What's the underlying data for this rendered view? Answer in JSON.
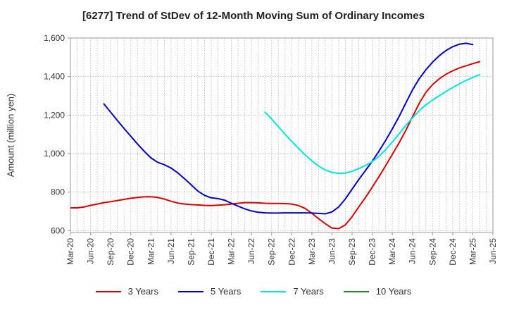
{
  "chart_data": {
    "type": "line",
    "title": "[6277]  Trend of StDev of 12-Month Moving Sum of Ordinary Incomes",
    "ylabel": "Amount (million yen)",
    "xlabel": "",
    "ylim": [
      590,
      1600
    ],
    "yticks": [
      600,
      800,
      1000,
      1200,
      1400,
      1600
    ],
    "ytick_labels": [
      "600",
      "800",
      "1,000",
      "1,200",
      "1,400",
      "1,600"
    ],
    "x_range": [
      "2020-03",
      "2025-06"
    ],
    "xtick_labels": [
      "Mar-20",
      "Jun-20",
      "Sep-20",
      "Dec-20",
      "Mar-21",
      "Jun-21",
      "Sep-21",
      "Dec-21",
      "Mar-22",
      "Jun-22",
      "Sep-22",
      "Dec-22",
      "Mar-23",
      "Jun-23",
      "Sep-23",
      "Dec-23",
      "Mar-24",
      "Jun-24",
      "Sep-24",
      "Dec-24",
      "Mar-25",
      "Jun-25"
    ],
    "grid": true,
    "legend_position": "bottom",
    "series": [
      {
        "name": "3 Years",
        "color": "#dd0000",
        "points": [
          [
            "2020-03",
            718
          ],
          [
            "2020-04",
            718
          ],
          [
            "2020-05",
            722
          ],
          [
            "2020-06",
            731
          ],
          [
            "2020-07",
            738
          ],
          [
            "2020-08",
            745
          ],
          [
            "2020-09",
            750
          ],
          [
            "2020-10",
            756
          ],
          [
            "2020-11",
            762
          ],
          [
            "2020-12",
            768
          ],
          [
            "2021-01",
            772
          ],
          [
            "2021-02",
            775
          ],
          [
            "2021-03",
            776
          ],
          [
            "2021-04",
            772
          ],
          [
            "2021-05",
            764
          ],
          [
            "2021-06",
            752
          ],
          [
            "2021-07",
            743
          ],
          [
            "2021-08",
            738
          ],
          [
            "2021-09",
            735
          ],
          [
            "2021-10",
            733
          ],
          [
            "2021-11",
            731
          ],
          [
            "2021-12",
            730
          ],
          [
            "2022-01",
            732
          ],
          [
            "2022-02",
            734
          ],
          [
            "2022-03",
            738
          ],
          [
            "2022-04",
            742
          ],
          [
            "2022-05",
            745
          ],
          [
            "2022-06",
            745
          ],
          [
            "2022-07",
            744
          ],
          [
            "2022-08",
            742
          ],
          [
            "2022-09",
            741
          ],
          [
            "2022-10",
            741
          ],
          [
            "2022-11",
            740
          ],
          [
            "2022-12",
            738
          ],
          [
            "2023-01",
            730
          ],
          [
            "2023-02",
            715
          ],
          [
            "2023-03",
            690
          ],
          [
            "2023-04",
            662
          ],
          [
            "2023-05",
            636
          ],
          [
            "2023-06",
            613
          ],
          [
            "2023-07",
            610
          ],
          [
            "2023-08",
            630
          ],
          [
            "2023-09",
            672
          ],
          [
            "2023-10",
            723
          ],
          [
            "2023-11",
            772
          ],
          [
            "2023-12",
            825
          ],
          [
            "2024-01",
            880
          ],
          [
            "2024-02",
            936
          ],
          [
            "2024-03",
            995
          ],
          [
            "2024-04",
            1055
          ],
          [
            "2024-05",
            1120
          ],
          [
            "2024-06",
            1190
          ],
          [
            "2024-07",
            1260
          ],
          [
            "2024-08",
            1318
          ],
          [
            "2024-09",
            1358
          ],
          [
            "2024-10",
            1388
          ],
          [
            "2024-11",
            1412
          ],
          [
            "2024-12",
            1430
          ],
          [
            "2025-01",
            1445
          ],
          [
            "2025-02",
            1456
          ],
          [
            "2025-03",
            1467
          ],
          [
            "2025-04",
            1477
          ]
        ]
      },
      {
        "name": "5 Years",
        "color": "#0000cc",
        "points": [
          [
            "2020-08",
            1258
          ],
          [
            "2020-09",
            1215
          ],
          [
            "2020-10",
            1172
          ],
          [
            "2020-11",
            1130
          ],
          [
            "2020-12",
            1090
          ],
          [
            "2021-01",
            1050
          ],
          [
            "2021-02",
            1012
          ],
          [
            "2021-03",
            978
          ],
          [
            "2021-04",
            955
          ],
          [
            "2021-05",
            942
          ],
          [
            "2021-06",
            925
          ],
          [
            "2021-07",
            900
          ],
          [
            "2021-08",
            870
          ],
          [
            "2021-09",
            838
          ],
          [
            "2021-10",
            805
          ],
          [
            "2021-11",
            783
          ],
          [
            "2021-12",
            770
          ],
          [
            "2022-01",
            766
          ],
          [
            "2022-02",
            758
          ],
          [
            "2022-03",
            742
          ],
          [
            "2022-04",
            727
          ],
          [
            "2022-05",
            713
          ],
          [
            "2022-06",
            702
          ],
          [
            "2022-07",
            695
          ],
          [
            "2022-08",
            692
          ],
          [
            "2022-09",
            691
          ],
          [
            "2022-10",
            691
          ],
          [
            "2022-11",
            692
          ],
          [
            "2022-12",
            692
          ],
          [
            "2023-01",
            692
          ],
          [
            "2023-02",
            692
          ],
          [
            "2023-03",
            691
          ],
          [
            "2023-04",
            689
          ],
          [
            "2023-05",
            687
          ],
          [
            "2023-06",
            697
          ],
          [
            "2023-07",
            723
          ],
          [
            "2023-08",
            765
          ],
          [
            "2023-09",
            815
          ],
          [
            "2023-10",
            865
          ],
          [
            "2023-11",
            912
          ],
          [
            "2023-12",
            960
          ],
          [
            "2024-01",
            1012
          ],
          [
            "2024-02",
            1068
          ],
          [
            "2024-03",
            1128
          ],
          [
            "2024-04",
            1192
          ],
          [
            "2024-05",
            1262
          ],
          [
            "2024-06",
            1330
          ],
          [
            "2024-07",
            1388
          ],
          [
            "2024-08",
            1435
          ],
          [
            "2024-09",
            1475
          ],
          [
            "2024-10",
            1508
          ],
          [
            "2024-11",
            1535
          ],
          [
            "2024-12",
            1555
          ],
          [
            "2025-01",
            1568
          ],
          [
            "2025-02",
            1573
          ],
          [
            "2025-03",
            1566
          ]
        ]
      },
      {
        "name": "7 Years",
        "color": "#00e5e5",
        "points": [
          [
            "2022-08",
            1215
          ],
          [
            "2022-09",
            1180
          ],
          [
            "2022-10",
            1140
          ],
          [
            "2022-11",
            1100
          ],
          [
            "2022-12",
            1063
          ],
          [
            "2023-01",
            1027
          ],
          [
            "2023-02",
            993
          ],
          [
            "2023-03",
            962
          ],
          [
            "2023-04",
            935
          ],
          [
            "2023-05",
            915
          ],
          [
            "2023-06",
            902
          ],
          [
            "2023-07",
            897
          ],
          [
            "2023-08",
            899
          ],
          [
            "2023-09",
            908
          ],
          [
            "2023-10",
            922
          ],
          [
            "2023-11",
            938
          ],
          [
            "2023-12",
            958
          ],
          [
            "2024-01",
            985
          ],
          [
            "2024-02",
            1020
          ],
          [
            "2024-03",
            1060
          ],
          [
            "2024-04",
            1102
          ],
          [
            "2024-05",
            1145
          ],
          [
            "2024-06",
            1185
          ],
          [
            "2024-07",
            1222
          ],
          [
            "2024-08",
            1253
          ],
          [
            "2024-09",
            1278
          ],
          [
            "2024-10",
            1300
          ],
          [
            "2024-11",
            1322
          ],
          [
            "2024-12",
            1343
          ],
          [
            "2025-01",
            1362
          ],
          [
            "2025-02",
            1380
          ],
          [
            "2025-03",
            1395
          ],
          [
            "2025-04",
            1410
          ]
        ]
      },
      {
        "name": "10 Years",
        "color": "#228b22",
        "points": []
      }
    ]
  }
}
